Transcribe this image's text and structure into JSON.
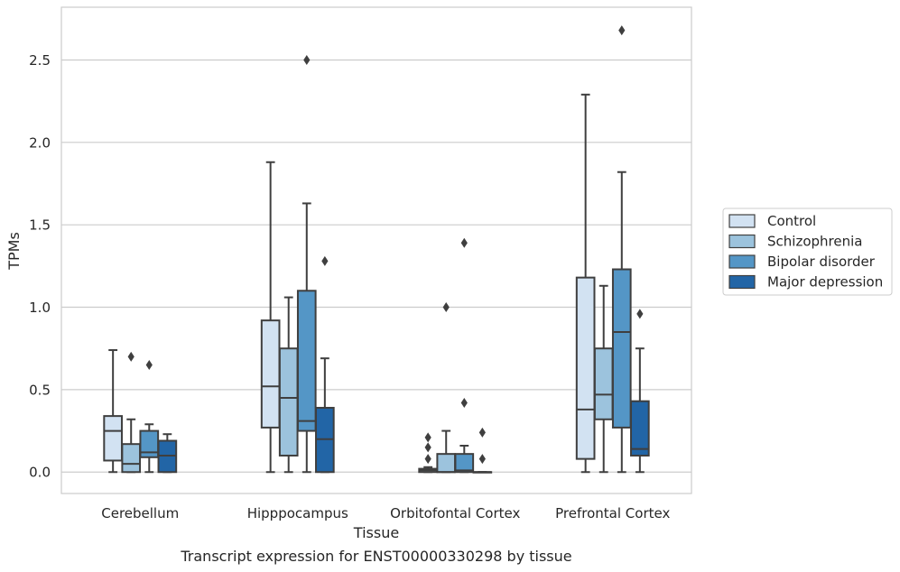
{
  "chart_data": {
    "type": "boxplot",
    "xlabel": "Tissue",
    "ylabel": "TPMs",
    "caption": "Transcript expression for ENST00000330298 by tissue",
    "ylim": [
      -0.13,
      2.82
    ],
    "yticks": [
      "0.0",
      "0.5",
      "1.0",
      "1.5",
      "2.0",
      "2.5"
    ],
    "grid": "horizontal",
    "legend_position": "right",
    "categories": [
      "Cerebellum",
      "Hipppocampus",
      "Orbitofontal Cortex",
      "Prefrontal Cortex"
    ],
    "series": [
      {
        "name": "Control",
        "color": "#d2e2f2",
        "boxes": [
          {
            "category": "Cerebellum",
            "whisker_low": 0.0,
            "q1": 0.07,
            "median": 0.25,
            "q3": 0.34,
            "whisker_high": 0.74,
            "outliers": []
          },
          {
            "category": "Hipppocampus",
            "whisker_low": 0.0,
            "q1": 0.27,
            "median": 0.52,
            "q3": 0.92,
            "whisker_high": 1.88,
            "outliers": []
          },
          {
            "category": "Orbitofontal Cortex",
            "whisker_low": 0.0,
            "q1": 0.0,
            "median": 0.01,
            "q3": 0.02,
            "whisker_high": 0.03,
            "outliers": [
              0.08,
              0.15,
              0.21
            ]
          },
          {
            "category": "Prefrontal Cortex",
            "whisker_low": 0.0,
            "q1": 0.08,
            "median": 0.38,
            "q3": 1.18,
            "whisker_high": 2.29,
            "outliers": []
          }
        ]
      },
      {
        "name": "Schizophrenia",
        "color": "#9cc3dd",
        "boxes": [
          {
            "category": "Cerebellum",
            "whisker_low": 0.0,
            "q1": 0.0,
            "median": 0.05,
            "q3": 0.17,
            "whisker_high": 0.32,
            "outliers": [
              0.7
            ]
          },
          {
            "category": "Hipppocampus",
            "whisker_low": 0.0,
            "q1": 0.1,
            "median": 0.45,
            "q3": 0.75,
            "whisker_high": 1.06,
            "outliers": []
          },
          {
            "category": "Orbitofontal Cortex",
            "whisker_low": 0.0,
            "q1": 0.0,
            "median": 0.0,
            "q3": 0.11,
            "whisker_high": 0.25,
            "outliers": [
              1.0
            ]
          },
          {
            "category": "Prefrontal Cortex",
            "whisker_low": 0.0,
            "q1": 0.32,
            "median": 0.47,
            "q3": 0.75,
            "whisker_high": 1.13,
            "outliers": []
          }
        ]
      },
      {
        "name": "Bipolar disorder",
        "color": "#5496c6",
        "boxes": [
          {
            "category": "Cerebellum",
            "whisker_low": 0.0,
            "q1": 0.09,
            "median": 0.12,
            "q3": 0.25,
            "whisker_high": 0.29,
            "outliers": [
              0.65
            ]
          },
          {
            "category": "Hipppocampus",
            "whisker_low": 0.0,
            "q1": 0.25,
            "median": 0.31,
            "q3": 1.1,
            "whisker_high": 1.63,
            "outliers": [
              2.5
            ]
          },
          {
            "category": "Orbitofontal Cortex",
            "whisker_low": 0.0,
            "q1": 0.0,
            "median": 0.01,
            "q3": 0.11,
            "whisker_high": 0.16,
            "outliers": [
              0.42,
              1.39
            ]
          },
          {
            "category": "Prefrontal Cortex",
            "whisker_low": 0.0,
            "q1": 0.27,
            "median": 0.85,
            "q3": 1.23,
            "whisker_high": 1.82,
            "outliers": [
              2.68
            ]
          }
        ]
      },
      {
        "name": "Major depression",
        "color": "#2265a6",
        "boxes": [
          {
            "category": "Cerebellum",
            "whisker_low": 0.0,
            "q1": 0.0,
            "median": 0.1,
            "q3": 0.19,
            "whisker_high": 0.23,
            "outliers": []
          },
          {
            "category": "Hipppocampus",
            "whisker_low": 0.0,
            "q1": 0.0,
            "median": 0.2,
            "q3": 0.39,
            "whisker_high": 0.69,
            "outliers": [
              1.28
            ]
          },
          {
            "category": "Orbitofontal Cortex",
            "whisker_low": 0.0,
            "q1": 0.0,
            "median": 0.0,
            "q3": 0.0,
            "whisker_high": 0.0,
            "outliers": [
              0.08,
              0.24
            ]
          },
          {
            "category": "Prefrontal Cortex",
            "whisker_low": 0.0,
            "q1": 0.1,
            "median": 0.14,
            "q3": 0.43,
            "whisker_high": 0.75,
            "outliers": [
              0.96
            ]
          }
        ]
      }
    ]
  }
}
